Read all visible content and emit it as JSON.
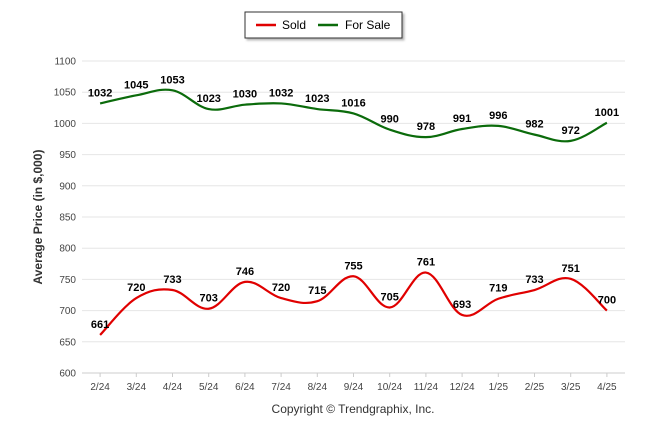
{
  "chart_data": {
    "type": "line",
    "title": "",
    "xlabel": "",
    "ylabel": "Average Price (in $,000)",
    "ylim": [
      600,
      1100
    ],
    "yticks": [
      600,
      650,
      700,
      750,
      800,
      850,
      900,
      950,
      1000,
      1050,
      1100
    ],
    "grid": true,
    "legend_position": "top-center",
    "categories": [
      "2/24",
      "3/24",
      "4/24",
      "5/24",
      "6/24",
      "7/24",
      "8/24",
      "9/24",
      "10/24",
      "11/24",
      "12/24",
      "1/25",
      "2/25",
      "3/25",
      "4/25"
    ],
    "series": [
      {
        "name": "Sold",
        "color": "#e00000",
        "values": [
          661,
          720,
          733,
          703,
          746,
          720,
          715,
          755,
          705,
          761,
          693,
          719,
          733,
          751,
          700
        ]
      },
      {
        "name": "For Sale",
        "color": "#0b6b0b",
        "values": [
          1032,
          1045,
          1053,
          1023,
          1030,
          1032,
          1023,
          1016,
          990,
          978,
          991,
          996,
          982,
          972,
          1001
        ]
      }
    ],
    "caption": "Copyright © Trendgraphix, Inc."
  }
}
